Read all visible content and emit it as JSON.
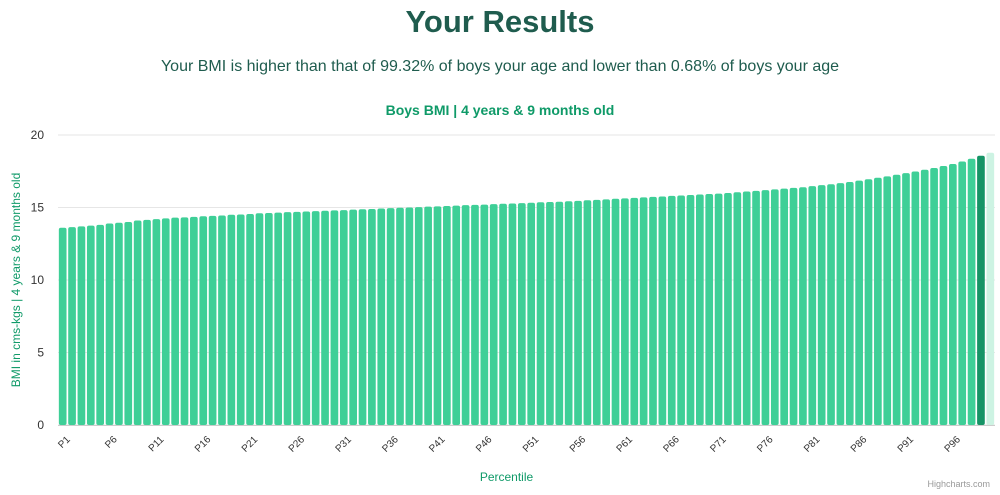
{
  "page": {
    "title": "Your Results",
    "subtitle": "Your BMI is higher than that of 99.32% of boys your age and lower than 0.68% of boys your age",
    "credit": "Highcharts.com"
  },
  "colors": {
    "bar": "#3ecf97",
    "highlight": "#169466",
    "next": "#cdf3e3",
    "title": "#0f9a68",
    "heading": "#1f5c4e",
    "grid": "#e6e6e6",
    "axis_text": "#333333"
  },
  "chart_data": {
    "type": "bar",
    "title": "Boys BMI | 4 years & 9 months old",
    "xlabel": "Percentile",
    "ylabel": "BMI in cms-kgs | 4 years & 9 months old",
    "ylim": [
      0,
      20
    ],
    "yticks": [
      0,
      5,
      10,
      15,
      20
    ],
    "grid": true,
    "xtick_labels": [
      "P1",
      "P6",
      "P11",
      "P16",
      "P21",
      "P26",
      "P31",
      "P36",
      "P41",
      "P46",
      "P51",
      "P56",
      "P61",
      "P66",
      "P71",
      "P76",
      "P81",
      "P86",
      "P91",
      "P96"
    ],
    "highlight_category": "P99",
    "categories": [
      "P1",
      "P2",
      "P3",
      "P4",
      "P5",
      "P6",
      "P7",
      "P8",
      "P9",
      "P10",
      "P11",
      "P12",
      "P13",
      "P14",
      "P15",
      "P16",
      "P17",
      "P18",
      "P19",
      "P20",
      "P21",
      "P22",
      "P23",
      "P24",
      "P25",
      "P26",
      "P27",
      "P28",
      "P29",
      "P30",
      "P31",
      "P32",
      "P33",
      "P34",
      "P35",
      "P36",
      "P37",
      "P38",
      "P39",
      "P40",
      "P41",
      "P42",
      "P43",
      "P44",
      "P45",
      "P46",
      "P47",
      "P48",
      "P49",
      "P50",
      "P51",
      "P52",
      "P53",
      "P54",
      "P55",
      "P56",
      "P57",
      "P58",
      "P59",
      "P60",
      "P61",
      "P62",
      "P63",
      "P64",
      "P65",
      "P66",
      "P67",
      "P68",
      "P69",
      "P70",
      "P71",
      "P72",
      "P73",
      "P74",
      "P75",
      "P76",
      "P77",
      "P78",
      "P79",
      "P80",
      "P81",
      "P82",
      "P83",
      "P84",
      "P85",
      "P86",
      "P87",
      "P88",
      "P89",
      "P90",
      "P91",
      "P92",
      "P93",
      "P94",
      "P95",
      "P96",
      "P97",
      "P98",
      "P99",
      "P100"
    ],
    "values": [
      13.6,
      13.65,
      13.7,
      13.75,
      13.8,
      13.9,
      13.95,
      14.0,
      14.1,
      14.15,
      14.2,
      14.25,
      14.3,
      14.32,
      14.35,
      14.4,
      14.42,
      14.45,
      14.5,
      14.52,
      14.55,
      14.6,
      14.62,
      14.65,
      14.68,
      14.7,
      14.72,
      14.75,
      14.78,
      14.8,
      14.82,
      14.85,
      14.88,
      14.9,
      14.93,
      14.96,
      14.98,
      15.0,
      15.03,
      15.06,
      15.08,
      15.1,
      15.13,
      15.16,
      15.18,
      15.2,
      15.23,
      15.26,
      15.28,
      15.3,
      15.33,
      15.36,
      15.38,
      15.4,
      15.43,
      15.46,
      15.5,
      15.53,
      15.56,
      15.6,
      15.63,
      15.66,
      15.7,
      15.73,
      15.76,
      15.8,
      15.83,
      15.86,
      15.9,
      15.93,
      15.96,
      16.0,
      16.05,
      16.1,
      16.15,
      16.2,
      16.25,
      16.3,
      16.35,
      16.4,
      16.47,
      16.54,
      16.6,
      16.68,
      16.76,
      16.85,
      16.95,
      17.05,
      17.15,
      17.26,
      17.37,
      17.48,
      17.6,
      17.72,
      17.86,
      18.0,
      18.17,
      18.36,
      18.57,
      18.78
    ]
  }
}
